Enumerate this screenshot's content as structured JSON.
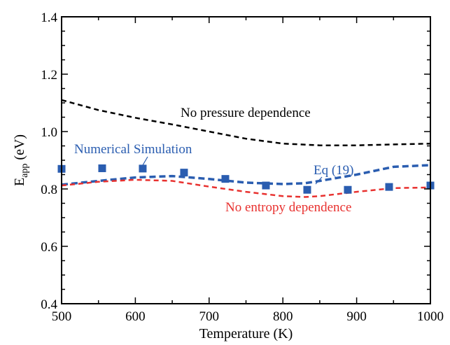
{
  "chart_data": {
    "type": "line",
    "xlabel": "Temperature (K)",
    "ylabel_main": "E",
    "ylabel_sub": "app",
    "ylabel_unit": " (eV)",
    "xlim": [
      500,
      1000
    ],
    "ylim": [
      0.4,
      1.4
    ],
    "xticks": [
      "500",
      "600",
      "700",
      "800",
      "900",
      "1000"
    ],
    "yticks": [
      "0.4",
      "0.6",
      "0.8",
      "1.0",
      "1.2",
      "1.4"
    ],
    "grid": false,
    "series": [
      {
        "name": "No pressure dependence",
        "style": "dashed",
        "color": "#000000",
        "x": [
          500,
          550,
          600,
          650,
          700,
          750,
          800,
          850,
          900,
          950,
          1000
        ],
        "y": [
          1.11,
          1.075,
          1.048,
          1.025,
          1.0,
          0.975,
          0.958,
          0.952,
          0.952,
          0.955,
          0.958
        ]
      },
      {
        "name": "Eq (19)",
        "style": "dashed",
        "color": "#2a5db0",
        "x": [
          500,
          550,
          600,
          650,
          700,
          750,
          800,
          830,
          850,
          900,
          950,
          1000
        ],
        "y": [
          0.815,
          0.828,
          0.84,
          0.845,
          0.835,
          0.822,
          0.817,
          0.82,
          0.828,
          0.85,
          0.877,
          0.883
        ]
      },
      {
        "name": "No entropy dependence",
        "style": "dashed",
        "color": "#e8312f",
        "x": [
          500,
          550,
          600,
          650,
          700,
          750,
          800,
          830,
          850,
          900,
          950,
          1000
        ],
        "y": [
          0.812,
          0.825,
          0.832,
          0.828,
          0.808,
          0.79,
          0.775,
          0.772,
          0.775,
          0.79,
          0.803,
          0.805
        ]
      },
      {
        "name": "Numerical Simulation",
        "style": "markers",
        "color": "#2a5db0",
        "x": [
          500,
          555,
          610,
          666,
          722,
          777,
          833,
          888,
          944,
          1000
        ],
        "y": [
          0.87,
          0.872,
          0.871,
          0.857,
          0.835,
          0.812,
          0.797,
          0.797,
          0.807,
          0.812
        ]
      }
    ],
    "annotations": {
      "pressure": "No pressure dependence",
      "numerical": "Numerical Simulation",
      "eq": "Eq (19)",
      "entropy": "No entropy dependence"
    },
    "annotation_colors": {
      "pressure": "#000000",
      "numerical": "#2a5db0",
      "eq": "#2a5db0",
      "entropy": "#e8312f"
    }
  }
}
